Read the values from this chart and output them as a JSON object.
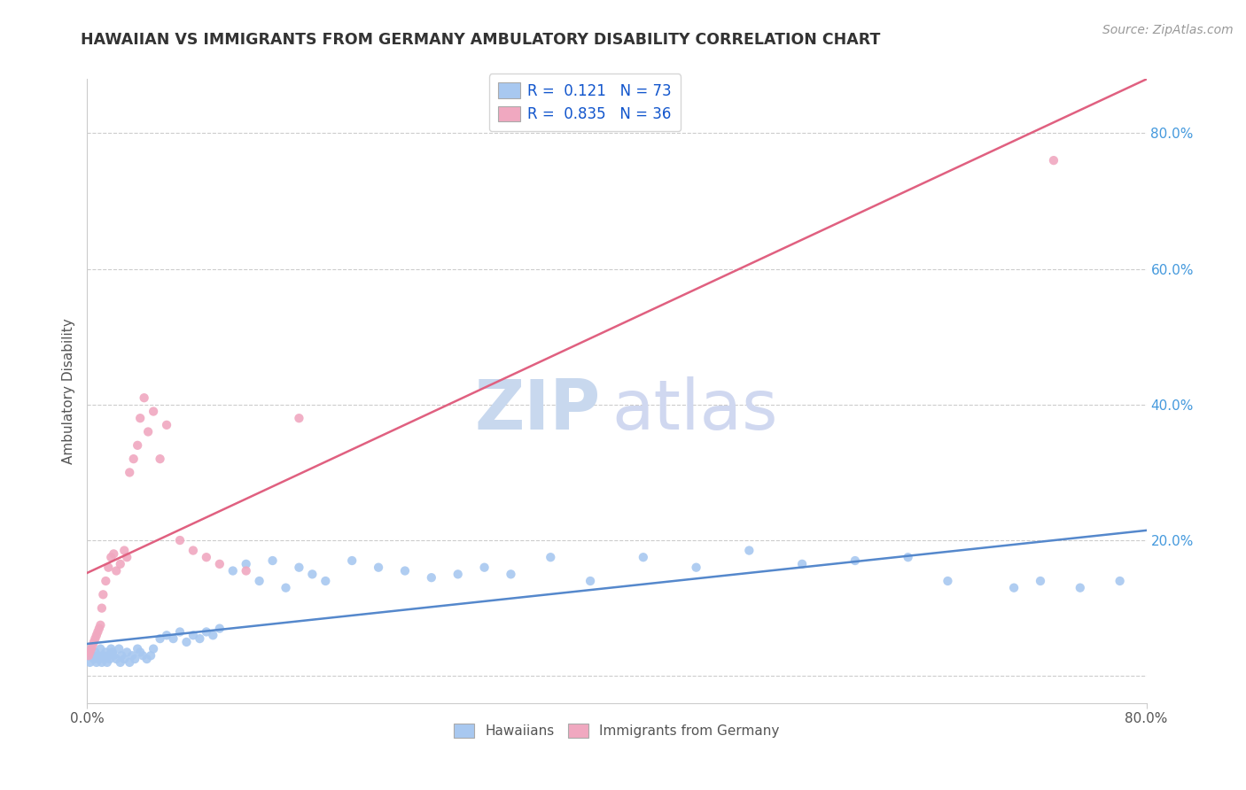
{
  "title": "HAWAIIAN VS IMMIGRANTS FROM GERMANY AMBULATORY DISABILITY CORRELATION CHART",
  "source": "Source: ZipAtlas.com",
  "ylabel": "Ambulatory Disability",
  "xlim": [
    0.0,
    0.8
  ],
  "ylim": [
    -0.04,
    0.88
  ],
  "yticks": [
    0.0,
    0.2,
    0.4,
    0.6,
    0.8
  ],
  "ytick_labels": [
    "",
    "20.0%",
    "40.0%",
    "60.0%",
    "80.0%"
  ],
  "background_color": "#ffffff",
  "grid_color": "#cccccc",
  "series1": {
    "name": "Hawaiians",
    "R": 0.121,
    "N": 73,
    "color": "#a8c8f0",
    "line_color": "#5588cc",
    "marker": "o"
  },
  "series2": {
    "name": "Immigrants from Germany",
    "R": 0.835,
    "N": 36,
    "color": "#f0a8c0",
    "line_color": "#e06080",
    "marker": "o"
  },
  "hawaiians_x": [
    0.001,
    0.002,
    0.003,
    0.004,
    0.005,
    0.006,
    0.007,
    0.008,
    0.009,
    0.01,
    0.011,
    0.012,
    0.013,
    0.014,
    0.015,
    0.016,
    0.017,
    0.018,
    0.019,
    0.02,
    0.022,
    0.024,
    0.025,
    0.026,
    0.028,
    0.03,
    0.032,
    0.034,
    0.036,
    0.038,
    0.04,
    0.042,
    0.045,
    0.048,
    0.05,
    0.055,
    0.06,
    0.065,
    0.07,
    0.075,
    0.08,
    0.085,
    0.09,
    0.095,
    0.1,
    0.11,
    0.12,
    0.13,
    0.14,
    0.15,
    0.16,
    0.17,
    0.18,
    0.2,
    0.22,
    0.24,
    0.26,
    0.28,
    0.3,
    0.32,
    0.35,
    0.38,
    0.42,
    0.46,
    0.5,
    0.54,
    0.58,
    0.62,
    0.65,
    0.7,
    0.72,
    0.75,
    0.78
  ],
  "hawaiians_y": [
    0.03,
    0.02,
    0.04,
    0.03,
    0.025,
    0.035,
    0.02,
    0.03,
    0.025,
    0.04,
    0.02,
    0.03,
    0.025,
    0.035,
    0.02,
    0.03,
    0.025,
    0.04,
    0.035,
    0.03,
    0.025,
    0.04,
    0.02,
    0.03,
    0.025,
    0.035,
    0.02,
    0.03,
    0.025,
    0.04,
    0.035,
    0.03,
    0.025,
    0.03,
    0.04,
    0.055,
    0.06,
    0.055,
    0.065,
    0.05,
    0.06,
    0.055,
    0.065,
    0.06,
    0.07,
    0.155,
    0.165,
    0.14,
    0.17,
    0.13,
    0.16,
    0.15,
    0.14,
    0.17,
    0.16,
    0.155,
    0.145,
    0.15,
    0.16,
    0.15,
    0.175,
    0.14,
    0.175,
    0.16,
    0.185,
    0.165,
    0.17,
    0.175,
    0.14,
    0.13,
    0.14,
    0.13,
    0.14
  ],
  "germany_x": [
    0.001,
    0.002,
    0.003,
    0.004,
    0.005,
    0.006,
    0.007,
    0.008,
    0.009,
    0.01,
    0.011,
    0.012,
    0.014,
    0.016,
    0.018,
    0.02,
    0.022,
    0.025,
    0.028,
    0.03,
    0.032,
    0.035,
    0.038,
    0.04,
    0.043,
    0.046,
    0.05,
    0.055,
    0.06,
    0.07,
    0.08,
    0.09,
    0.1,
    0.12,
    0.16,
    0.73
  ],
  "germany_y": [
    0.03,
    0.035,
    0.04,
    0.045,
    0.05,
    0.055,
    0.06,
    0.065,
    0.07,
    0.075,
    0.1,
    0.12,
    0.14,
    0.16,
    0.175,
    0.18,
    0.155,
    0.165,
    0.185,
    0.175,
    0.3,
    0.32,
    0.34,
    0.38,
    0.41,
    0.36,
    0.39,
    0.32,
    0.37,
    0.2,
    0.185,
    0.175,
    0.165,
    0.155,
    0.38,
    0.76
  ]
}
